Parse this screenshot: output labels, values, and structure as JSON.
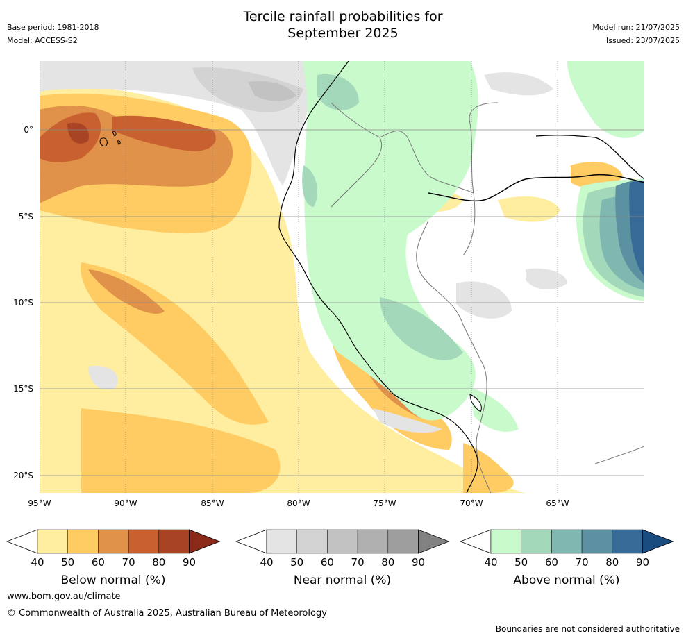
{
  "header": {
    "title_line1": "Tercile rainfall probabilities for",
    "title_line2": "September 2025",
    "base_period": "Base period: 1981-2018",
    "model": "Model: ACCESS-S2",
    "model_run": "Model run: 21/07/2025",
    "issued": "Issued: 23/07/2025"
  },
  "map": {
    "lat_labels": [
      "0°",
      "5°S",
      "10°S",
      "15°S",
      "20°S"
    ],
    "lon_labels": [
      "95°W",
      "90°W",
      "85°W",
      "80°W",
      "75°W",
      "70°W",
      "65°W"
    ],
    "regions": {
      "below_normal": "Ecuador/Peru coast and eastern Pacific",
      "near_normal": "offshore and Andes patches",
      "above_normal": "Amazon basin east"
    }
  },
  "colorbars": [
    {
      "label": "Below normal (%)",
      "ticks": [
        "40",
        "50",
        "60",
        "70",
        "80",
        "90"
      ],
      "colors": [
        "#ffffff",
        "#ffeda0",
        "#fecc63",
        "#e0914a",
        "#c8612f",
        "#a84424",
        "#8b2a18"
      ]
    },
    {
      "label": "Near normal (%)",
      "ticks": [
        "40",
        "50",
        "60",
        "70",
        "80",
        "90"
      ],
      "colors": [
        "#ffffff",
        "#e4e4e4",
        "#d3d3d3",
        "#c2c2c2",
        "#b0b0b0",
        "#9e9e9e",
        "#828282"
      ]
    },
    {
      "label": "Above normal (%)",
      "ticks": [
        "40",
        "50",
        "60",
        "70",
        "80",
        "90"
      ],
      "colors": [
        "#ffffff",
        "#c8facb",
        "#a3d8bb",
        "#7fb8b0",
        "#5b91a0",
        "#386a97",
        "#1a4c80"
      ]
    }
  ],
  "footer": {
    "url": "www.bom.gov.au/climate",
    "copyright": "© Commonwealth of Australia 2025, Australian Bureau of Meteorology",
    "disclaimer": "Boundaries are not considered authoritative"
  }
}
